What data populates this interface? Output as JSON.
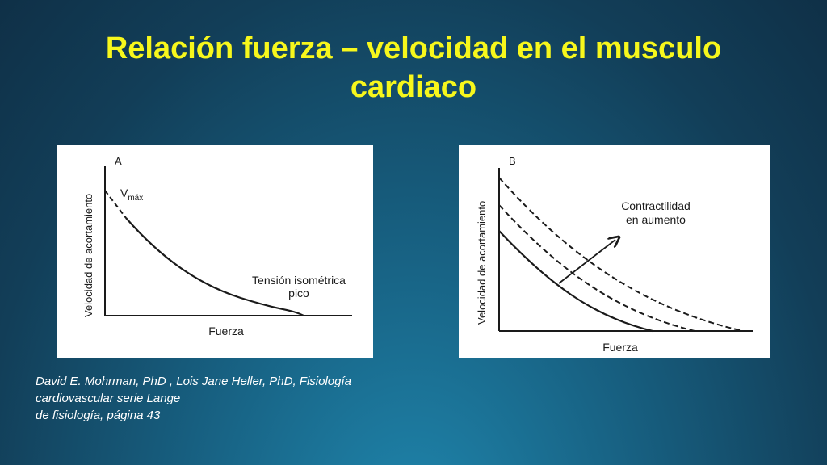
{
  "slide": {
    "title_line1": "Relación fuerza – velocidad en el musculo",
    "title_line2": "cardiaco"
  },
  "figure_a": {
    "panel_label": "A",
    "y_axis_label": "Velocidad de acortamiento",
    "x_axis_label": "Fuerza",
    "vmax_label": "V",
    "vmax_subscript": "máx",
    "annotation_line1": "Tensión isométrica",
    "annotation_line2": "pico"
  },
  "figure_b": {
    "panel_label": "B",
    "y_axis_label": "Velocidad de acortamiento",
    "x_axis_label": "Fuerza",
    "annotation_line1": "Contractilidad",
    "annotation_line2": "en aumento"
  },
  "citation": {
    "line1": "David E. Mohrman, PhD , Lois Jane Heller, PhD, Fisiología",
    "line2": "cardiovascular  serie Lange",
    "line3": "de fisiología, página 43"
  },
  "colors": {
    "title": "#f7f71c",
    "background": "#135070",
    "panel": "#ffffff",
    "ink": "#1a1a1a"
  }
}
